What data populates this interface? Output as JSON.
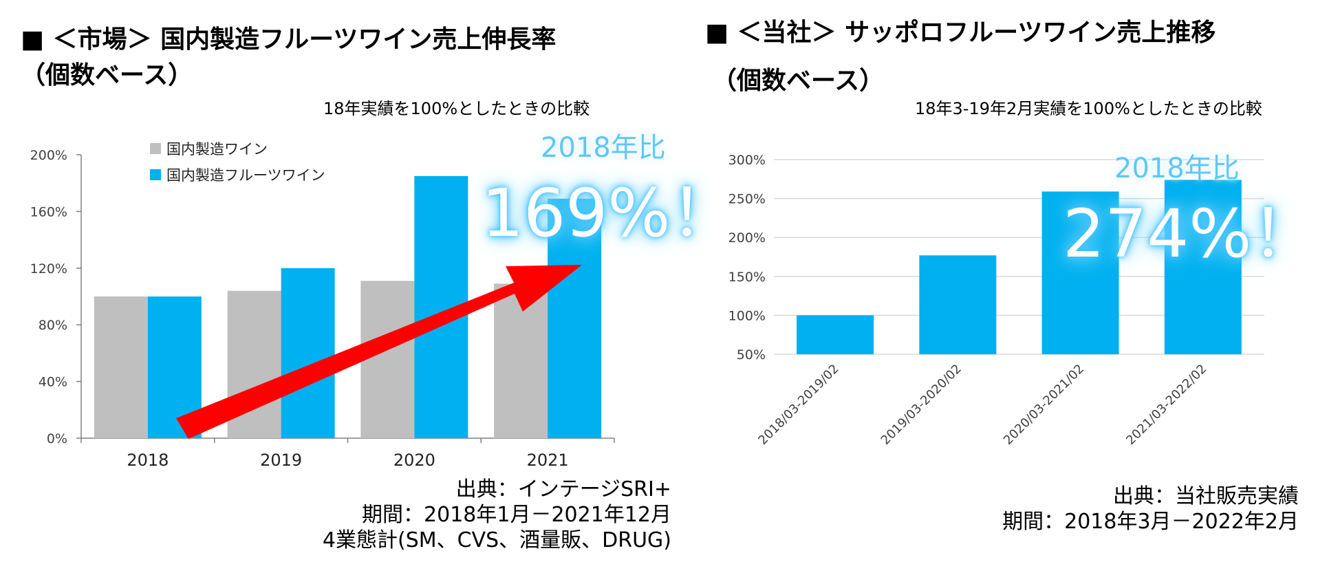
{
  "left": {
    "title": "■ ＜市場＞ 国内製造フルーツワイン売上伸長率",
    "subtitle": "（個数ベース）",
    "note": "18年実績を100%としたときの比較",
    "highlight_small": "2018年比",
    "highlight_big": "169%！",
    "source_lines": [
      "出典：インテージSRI+",
      "期間：2018年1月－2021年12月",
      "4業態計(SM、CVS、酒量販、DRUG)"
    ]
  },
  "right": {
    "title": "■ ＜当社＞ サッポロフルーツワイン売上推移",
    "subtitle": "（個数ベース）",
    "note": "18年3-19年2月実績を100%としたときの比較",
    "highlight_small": "2018年比",
    "highlight_big": "274%！",
    "source_lines": [
      "出典：当社販売実績",
      "期間：2018年3月－2022年2月"
    ]
  },
  "colors": {
    "gray": "#bfbfbf",
    "blue": "#00b0f0",
    "arrow": "#ff0000",
    "grid": "#d9d9d9",
    "axis": "#808080"
  },
  "chart_data": [
    {
      "type": "bar",
      "title": "国内製造フルーツワイン売上伸長率",
      "categories": [
        "2018",
        "2019",
        "2020",
        "2021"
      ],
      "series": [
        {
          "name": "国内製造ワイン",
          "values": [
            100,
            104,
            111,
            109
          ]
        },
        {
          "name": "国内製造フルーツワイン",
          "values": [
            100,
            120,
            185,
            169
          ]
        }
      ],
      "ylim": [
        0,
        200
      ],
      "yticks": [
        0,
        40,
        80,
        120,
        160,
        200
      ],
      "ytick_labels": [
        "0%",
        "40%",
        "80%",
        "120%",
        "160%",
        "200%"
      ],
      "legend": "top-left",
      "grid": false
    },
    {
      "type": "bar",
      "title": "サッポロフルーツワイン売上推移",
      "categories": [
        "2018/03-2019/02",
        "2019/03-2020/02",
        "2020/03-2021/02",
        "2021/03-2022/02"
      ],
      "series": [
        {
          "name": "サッポロフルーツワイン",
          "values": [
            100,
            177,
            259,
            274
          ]
        }
      ],
      "ylim": [
        50,
        300
      ],
      "yticks": [
        50,
        100,
        150,
        200,
        250,
        300
      ],
      "ytick_labels": [
        "50%",
        "100%",
        "150%",
        "200%",
        "250%",
        "300%"
      ],
      "grid": true
    }
  ]
}
